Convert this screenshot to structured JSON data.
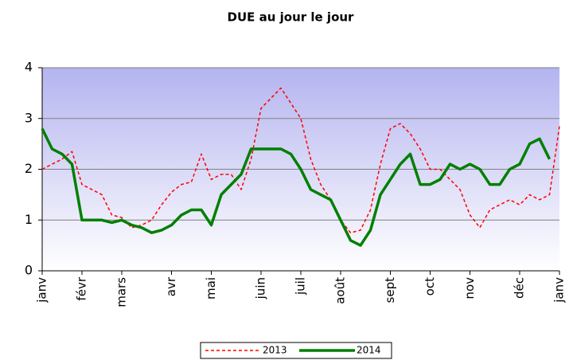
{
  "chart_data": {
    "type": "line",
    "title": "DUE au jour le jour",
    "categories": [
      "janv",
      null,
      null,
      null,
      "févr",
      null,
      null,
      null,
      "mars",
      null,
      null,
      null,
      null,
      "avr",
      null,
      null,
      null,
      "mai",
      null,
      null,
      null,
      null,
      "juin",
      null,
      null,
      null,
      "juil",
      null,
      null,
      null,
      "août",
      null,
      null,
      null,
      null,
      "sept",
      null,
      null,
      null,
      "oct",
      null,
      null,
      null,
      "nov",
      null,
      null,
      null,
      null,
      "déc",
      null,
      null,
      null,
      "janv"
    ],
    "series": [
      {
        "name": "2013",
        "color": "#ff0000",
        "dash": true,
        "values": [
          2.0,
          2.1,
          2.2,
          2.35,
          1.7,
          1.6,
          1.5,
          1.1,
          1.05,
          0.85,
          0.9,
          1.0,
          1.3,
          1.55,
          1.7,
          1.75,
          2.3,
          1.8,
          1.9,
          1.9,
          1.6,
          2.2,
          3.2,
          3.4,
          3.6,
          3.3,
          3.0,
          2.2,
          1.7,
          1.4,
          1.0,
          0.75,
          0.8,
          1.2,
          2.1,
          2.8,
          2.9,
          2.7,
          2.4,
          2.0,
          2.0,
          1.8,
          1.6,
          1.1,
          0.85,
          1.2,
          1.3,
          1.4,
          1.3,
          1.5,
          1.4,
          1.5,
          2.85
        ]
      },
      {
        "name": "2014",
        "color": "#008000",
        "dash": false,
        "values": [
          2.8,
          2.4,
          2.3,
          2.1,
          1.0,
          1.0,
          1.0,
          0.95,
          1.0,
          0.9,
          0.85,
          0.75,
          0.8,
          0.9,
          1.1,
          1.2,
          1.2,
          0.9,
          1.5,
          1.7,
          1.9,
          2.4,
          2.4,
          2.4,
          2.4,
          2.3,
          2.0,
          1.6,
          1.5,
          1.4,
          1.0,
          0.6,
          0.5,
          0.8,
          1.5,
          1.8,
          2.1,
          2.3,
          1.7,
          1.7,
          1.8,
          2.1,
          2.0,
          2.1,
          2.0,
          1.7,
          1.7,
          2.0,
          2.1,
          2.5,
          2.6,
          2.2,
          null
        ]
      }
    ],
    "ylim": [
      0,
      4
    ],
    "yticks": [
      0,
      1,
      2,
      3,
      4
    ],
    "grid": true,
    "legend": "bottom"
  }
}
